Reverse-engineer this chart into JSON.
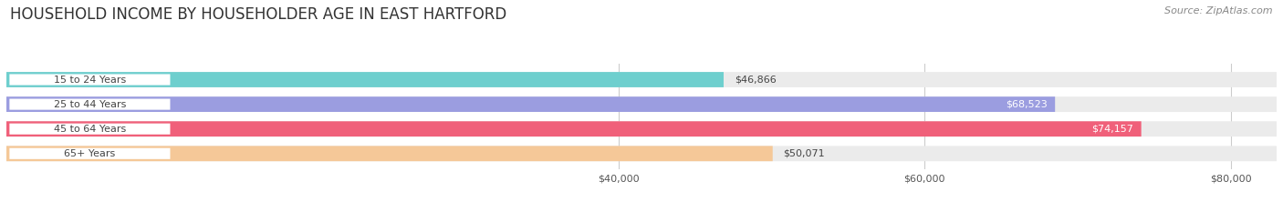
{
  "title": "HOUSEHOLD INCOME BY HOUSEHOLDER AGE IN EAST HARTFORD",
  "source": "Source: ZipAtlas.com",
  "categories": [
    "15 to 24 Years",
    "25 to 44 Years",
    "45 to 64 Years",
    "65+ Years"
  ],
  "values": [
    46866,
    68523,
    74157,
    50071
  ],
  "bar_colors": [
    "#6ecfce",
    "#9b9de0",
    "#f0607a",
    "#f5c898"
  ],
  "bar_bg_color": "#ebebeb",
  "value_labels": [
    "$46,866",
    "$68,523",
    "$74,157",
    "$50,071"
  ],
  "value_inside": [
    false,
    true,
    true,
    false
  ],
  "xlim_min": 0,
  "xlim_max": 83000,
  "xticks": [
    40000,
    60000,
    80000
  ],
  "xtick_labels": [
    "$40,000",
    "$60,000",
    "$80,000"
  ],
  "title_fontsize": 12,
  "source_fontsize": 8,
  "bar_height": 0.62,
  "background_color": "#ffffff",
  "label_inside_color": "#ffffff",
  "label_outside_color": "#444444",
  "pill_color": "#ffffff",
  "pill_text_color": "#444444",
  "grid_color": "#cccccc"
}
